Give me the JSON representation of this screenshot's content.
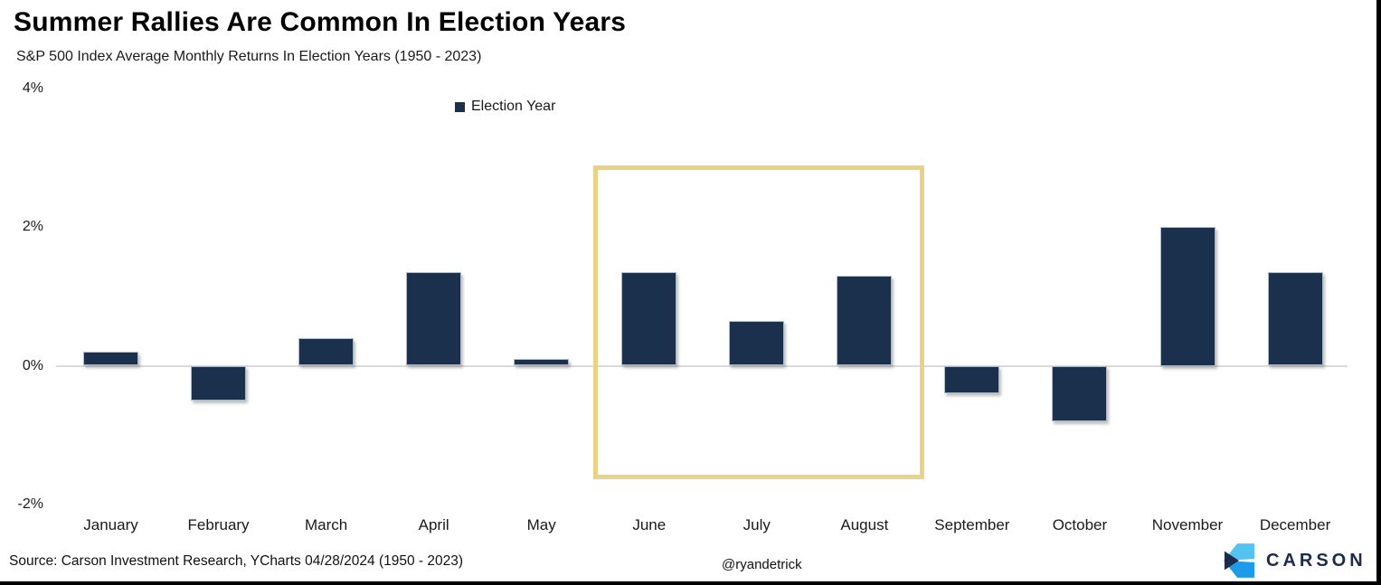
{
  "header": {
    "title": "Summer Rallies Are Common In Election Years",
    "subtitle": "S&P 500 Index Average Monthly Returns In Election Years (1950 - 2023)"
  },
  "legend": {
    "label": "Election Year"
  },
  "footer": {
    "source": "Source: Carson Investment Research, YCharts 04/28/2024 (1950 - 2023)",
    "handle": "@ryandetrick",
    "logo_text": "CARSON"
  },
  "colors": {
    "bar": "#1A304D",
    "bar_border": "#A9BAC8",
    "highlight_border": "#E9D185",
    "axis_line": "#DADADA",
    "logo_navy": "#1B2B4B",
    "logo_light_blue": "#55C3F2",
    "logo_blue": "#1E9BE8"
  },
  "chart_data": {
    "type": "bar",
    "title": "Summer Rallies Are Common In Election Years",
    "subtitle": "S&P 500 Index Average Monthly Returns In Election Years (1950 - 2023)",
    "series_name": "Election Year",
    "categories": [
      "January",
      "February",
      "March",
      "April",
      "May",
      "June",
      "July",
      "August",
      "September",
      "October",
      "November",
      "December"
    ],
    "values": [
      0.2,
      -0.5,
      0.4,
      1.35,
      0.1,
      1.35,
      0.65,
      1.3,
      -0.4,
      -0.8,
      2.0,
      1.35
    ],
    "unit": "%",
    "ylabel": "",
    "xlabel": "",
    "y_ticks": [
      4,
      2,
      0,
      -2
    ],
    "ylim": [
      -2,
      4
    ],
    "grid": "zero-line-only",
    "legend_position": "top-center",
    "highlight": {
      "from": "June",
      "to": "August",
      "note": "gold box around summer months"
    }
  }
}
